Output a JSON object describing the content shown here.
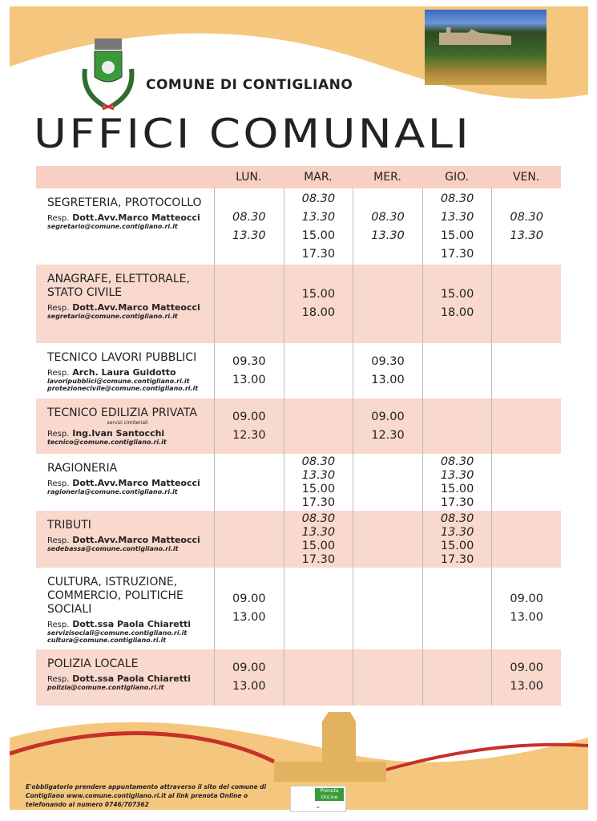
{
  "header": {
    "municipality": "COMUNE DI CONTIGLIANO",
    "title": "UFFICI COMUNALI"
  },
  "colors": {
    "orange": "#f5c77e",
    "pink": "#f9d8cd",
    "red": "#c8302a"
  },
  "table": {
    "columns": [
      "",
      "LUN.",
      "MAR.",
      "MER.",
      "GIO.",
      "VEN."
    ],
    "rows": [
      {
        "name": "SEGRETERIA, PROTOCOLLO",
        "note": "",
        "resp_label": "Resp.",
        "resp": "Dott.Avv.Marco Matteocci",
        "emails": [
          "segretario@comune.contigliano.ri.it"
        ],
        "times": [
          [
            "08.30",
            "13.30"
          ],
          [
            "08.30",
            "13.30",
            "15.00",
            "17.30"
          ],
          [
            "08.30",
            "13.30"
          ],
          [
            "08.30",
            "13.30",
            "15.00",
            "17.30"
          ],
          [
            "08.30",
            "13.30"
          ]
        ]
      },
      {
        "name": "ANAGRAFE, ELETTORALE, STATO CIVILE",
        "note": "",
        "resp_label": "Resp.",
        "resp": "Dott.Avv.Marco Matteocci",
        "emails": [
          "segretario@comune.contigliano.ri.it"
        ],
        "times": [
          [],
          [
            "15.00",
            "18.00"
          ],
          [],
          [
            "15.00",
            "18.00"
          ],
          []
        ]
      },
      {
        "name": "TECNICO LAVORI PUBBLICI",
        "note": "",
        "resp_label": "Resp.",
        "resp": "Arch. Laura Guidotto",
        "emails": [
          "lavoripubblici@comune.contigliano.ri.it",
          "protezionecivile@comune.contigliano.ri.it"
        ],
        "times": [
          [
            "09.30",
            "13.00"
          ],
          [],
          [
            "09.30",
            "13.00"
          ],
          [],
          []
        ]
      },
      {
        "name": "TECNICO EDILIZIA PRIVATA",
        "note": "servizi cimiteriali",
        "resp_label": "Resp.",
        "resp": "Ing.Ivan Santocchi",
        "emails": [
          "tecnico@comune.contigliano.ri.it"
        ],
        "times": [
          [
            "09.00",
            "12.30"
          ],
          [],
          [
            "09.00",
            "12.30"
          ],
          [],
          []
        ]
      },
      {
        "name": "RAGIONERIA",
        "note": "",
        "resp_label": "Resp.",
        "resp": "Dott.Avv.Marco Matteocci",
        "emails": [
          "ragioneria@comune.contigliano.ri.it"
        ],
        "times": [
          [],
          [
            "08.30",
            "13.30",
            "15.00",
            "17.30"
          ],
          [],
          [
            "08.30",
            "13.30",
            "15.00",
            "17.30"
          ],
          []
        ]
      },
      {
        "name": "TRIBUTI",
        "note": "",
        "resp_label": "Resp.",
        "resp": "Dott.Avv.Marco Matteocci",
        "emails": [
          "sedebassa@comune.contigliano.ri.it"
        ],
        "times": [
          [],
          [
            "08.30",
            "13.30",
            "15.00",
            "17.30"
          ],
          [],
          [
            "08.30",
            "13.30",
            "15.00",
            "17.30"
          ],
          []
        ]
      },
      {
        "name": "CULTURA, ISTRUZIONE, COMMERCIO, POLITICHE SOCIALI",
        "note": "",
        "resp_label": "Resp.",
        "resp": "Dott.ssa Paola Chiaretti",
        "emails": [
          "servizisociali@comune.contigliano.ri.it",
          "cultura@comune.contigliano.ri.it"
        ],
        "times": [
          [
            "09.00",
            "13.00"
          ],
          [],
          [],
          [],
          [
            "09.00",
            "13.00"
          ]
        ]
      },
      {
        "name": "POLIZIA LOCALE",
        "note": "",
        "resp_label": "Resp.",
        "resp": "Dott.ssa Paola Chiaretti",
        "emails": [
          "polizia@comune.contigliano.ri.it"
        ],
        "times": [
          [
            "09.00",
            "13.00"
          ],
          [],
          [],
          [],
          [
            "09.00",
            "13.00"
          ]
        ]
      }
    ]
  },
  "footer": {
    "note": "E'obbligatorio prendere appuntamento attraverso il sito del comune di Contigliano www.comune.contigliano.ri.it al link prenota Online o telefonando al numero 0746/707362",
    "button_label": "Prenota OnLine",
    "button_icon": "chevron-down-icon"
  }
}
